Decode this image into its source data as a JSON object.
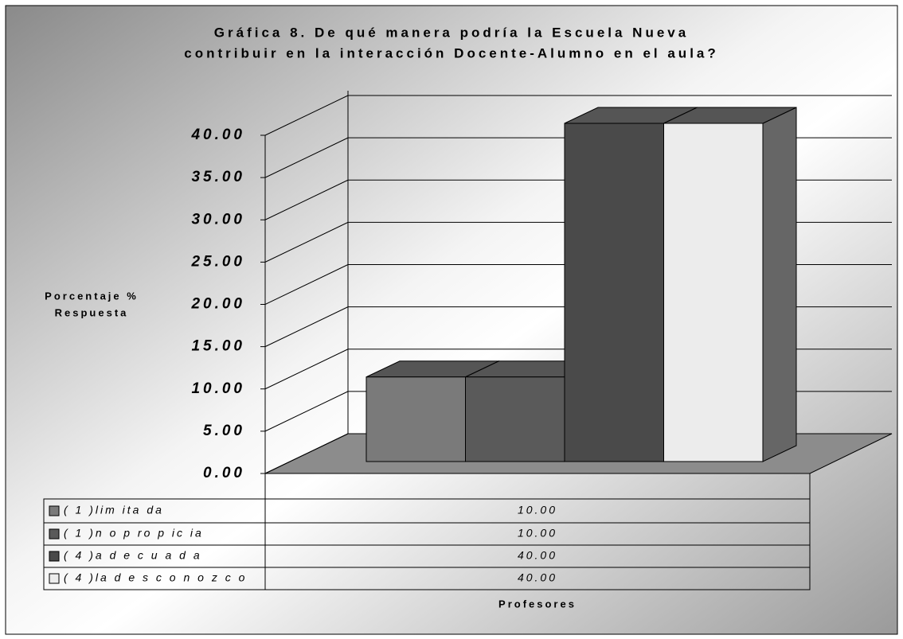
{
  "chart_data": {
    "type": "bar3d",
    "title": [
      "Gráfica 8. De qué manera podría la Escuela Nueva",
      "contribuir en la interacción Docente-Alumno en el aula?"
    ],
    "y_label": [
      "Porcentaje %",
      "Respuesta"
    ],
    "categories": [
      "Profesores"
    ],
    "series": [
      {
        "name": "( 1 )lim ita da",
        "color": "#7a7a7a",
        "values": [
          10
        ],
        "value_labels": [
          "10.00"
        ]
      },
      {
        "name": "( 1 )n o  p ro p ic ia",
        "color": "#5a5a5a",
        "values": [
          10
        ],
        "value_labels": [
          "10.00"
        ]
      },
      {
        "name": "( 4 )a d e c u a d a",
        "color": "#4a4a4a",
        "values": [
          40
        ],
        "value_labels": [
          "40.00"
        ]
      },
      {
        "name": "( 4 )la  d e s c o n o z c o",
        "color": "#ececec",
        "values": [
          40
        ],
        "value_labels": [
          "40.00"
        ]
      }
    ],
    "ylim": [
      0,
      40
    ],
    "yticks": [
      {
        "value": 0,
        "label": "0.00"
      },
      {
        "value": 5,
        "label": "5.00"
      },
      {
        "value": 10,
        "label": "10.00"
      },
      {
        "value": 15,
        "label": "15.00"
      },
      {
        "value": 20,
        "label": "20.00"
      },
      {
        "value": 25,
        "label": "25.00"
      },
      {
        "value": 30,
        "label": "30.00"
      },
      {
        "value": 35,
        "label": "35.00"
      },
      {
        "value": 40,
        "label": "40.00"
      }
    ],
    "grid": true
  }
}
